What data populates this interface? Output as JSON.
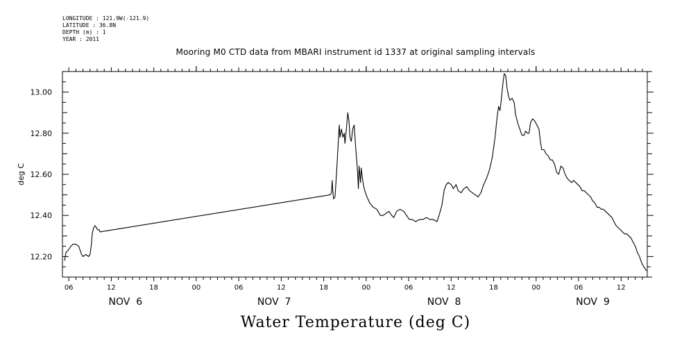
{
  "header": {
    "lines": [
      "LONGITUDE : 121.9W(-121.9)",
      "LATITUDE : 36.8N",
      "DEPTH (m) : 1",
      "YEAR : 2011"
    ]
  },
  "chart_data": {
    "type": "line",
    "title": "Mooring M0 CTD data from MBARI instrument id 1337 at original sampling intervals",
    "ylabel": "deg C",
    "xlabel": "Water Temperature (deg C)",
    "ylim": [
      12.1,
      13.1
    ],
    "y_ticks": [
      12.2,
      12.4,
      12.6,
      12.8,
      13.0
    ],
    "y_tick_labels": [
      "12.20",
      "12.40",
      "12.60",
      "12.80",
      "13.00"
    ],
    "x_unit": "hours since 2011-11-06 00:00",
    "xlim": [
      5.1,
      87.7
    ],
    "x_ticks": [
      6,
      12,
      18,
      24,
      30,
      36,
      42,
      48,
      54,
      60,
      66,
      72,
      78,
      84
    ],
    "x_tick_labels": [
      "06",
      "12",
      "18",
      "00",
      "06",
      "12",
      "18",
      "00",
      "06",
      "12",
      "18",
      "00",
      "06",
      "12"
    ],
    "day_labels": [
      {
        "hour": 14,
        "label": "NOV  6"
      },
      {
        "hour": 35,
        "label": "NOV  7"
      },
      {
        "hour": 59,
        "label": "NOV  8"
      },
      {
        "hour": 80,
        "label": "NOV  9"
      }
    ],
    "series": [
      {
        "values": [
          [
            5.4,
            12.18
          ],
          [
            5.6,
            12.22
          ],
          [
            5.9,
            12.23
          ],
          [
            6.3,
            12.25
          ],
          [
            6.6,
            12.26
          ],
          [
            7.0,
            12.26
          ],
          [
            7.4,
            12.25
          ],
          [
            7.6,
            12.23
          ],
          [
            7.8,
            12.21
          ],
          [
            8.0,
            12.2
          ],
          [
            8.4,
            12.21
          ],
          [
            8.8,
            12.2
          ],
          [
            9.0,
            12.21
          ],
          [
            9.2,
            12.26
          ],
          [
            9.3,
            12.31
          ],
          [
            9.5,
            12.34
          ],
          [
            9.7,
            12.35
          ],
          [
            9.9,
            12.34
          ],
          [
            10.1,
            12.33
          ],
          [
            10.3,
            12.33
          ],
          [
            10.4,
            12.32
          ],
          [
            42.9,
            12.5
          ],
          [
            43.1,
            12.51
          ],
          [
            43.2,
            12.57
          ],
          [
            43.3,
            12.51
          ],
          [
            43.4,
            12.48
          ],
          [
            43.6,
            12.49
          ],
          [
            43.8,
            12.6
          ],
          [
            44.0,
            12.72
          ],
          [
            44.2,
            12.84
          ],
          [
            44.3,
            12.78
          ],
          [
            44.5,
            12.82
          ],
          [
            44.7,
            12.78
          ],
          [
            44.9,
            12.8
          ],
          [
            45.0,
            12.75
          ],
          [
            45.2,
            12.82
          ],
          [
            45.4,
            12.9
          ],
          [
            45.6,
            12.85
          ],
          [
            45.7,
            12.78
          ],
          [
            45.9,
            12.76
          ],
          [
            46.1,
            12.82
          ],
          [
            46.3,
            12.84
          ],
          [
            46.5,
            12.74
          ],
          [
            46.7,
            12.65
          ],
          [
            46.8,
            12.6
          ],
          [
            46.9,
            12.53
          ],
          [
            47.0,
            12.64
          ],
          [
            47.2,
            12.56
          ],
          [
            47.3,
            12.63
          ],
          [
            47.4,
            12.6
          ],
          [
            47.6,
            12.55
          ],
          [
            47.8,
            12.52
          ],
          [
            48.0,
            12.5
          ],
          [
            48.5,
            12.46
          ],
          [
            49.0,
            12.44
          ],
          [
            49.5,
            12.43
          ],
          [
            50.0,
            12.4
          ],
          [
            50.4,
            12.4
          ],
          [
            50.8,
            12.41
          ],
          [
            51.2,
            12.42
          ],
          [
            51.6,
            12.4
          ],
          [
            51.9,
            12.39
          ],
          [
            52.3,
            12.42
          ],
          [
            52.8,
            12.43
          ],
          [
            53.3,
            12.42
          ],
          [
            53.7,
            12.4
          ],
          [
            54.1,
            12.38
          ],
          [
            54.5,
            12.38
          ],
          [
            55.0,
            12.37
          ],
          [
            55.5,
            12.38
          ],
          [
            56.0,
            12.38
          ],
          [
            56.5,
            12.39
          ],
          [
            57.0,
            12.38
          ],
          [
            57.5,
            12.38
          ],
          [
            58.0,
            12.37
          ],
          [
            58.3,
            12.4
          ],
          [
            58.7,
            12.45
          ],
          [
            59.0,
            12.52
          ],
          [
            59.3,
            12.55
          ],
          [
            59.6,
            12.56
          ],
          [
            60.0,
            12.55
          ],
          [
            60.3,
            12.53
          ],
          [
            60.7,
            12.55
          ],
          [
            61.0,
            12.52
          ],
          [
            61.4,
            12.51
          ],
          [
            61.8,
            12.53
          ],
          [
            62.2,
            12.54
          ],
          [
            62.6,
            12.52
          ],
          [
            63.0,
            12.51
          ],
          [
            63.4,
            12.5
          ],
          [
            63.8,
            12.49
          ],
          [
            64.2,
            12.51
          ],
          [
            64.6,
            12.55
          ],
          [
            65.0,
            12.58
          ],
          [
            65.4,
            12.62
          ],
          [
            65.8,
            12.68
          ],
          [
            66.2,
            12.78
          ],
          [
            66.5,
            12.88
          ],
          [
            66.7,
            12.93
          ],
          [
            66.9,
            12.91
          ],
          [
            67.1,
            12.97
          ],
          [
            67.3,
            13.04
          ],
          [
            67.5,
            13.09
          ],
          [
            67.7,
            13.08
          ],
          [
            67.9,
            13.02
          ],
          [
            68.1,
            12.98
          ],
          [
            68.3,
            12.96
          ],
          [
            68.6,
            12.97
          ],
          [
            68.9,
            12.95
          ],
          [
            69.1,
            12.89
          ],
          [
            69.4,
            12.85
          ],
          [
            69.7,
            12.82
          ],
          [
            70.0,
            12.79
          ],
          [
            70.3,
            12.79
          ],
          [
            70.5,
            12.81
          ],
          [
            70.8,
            12.8
          ],
          [
            71.0,
            12.8
          ],
          [
            71.2,
            12.85
          ],
          [
            71.5,
            12.87
          ],
          [
            71.8,
            12.86
          ],
          [
            72.1,
            12.84
          ],
          [
            72.4,
            12.82
          ],
          [
            72.6,
            12.76
          ],
          [
            72.8,
            12.72
          ],
          [
            73.1,
            12.72
          ],
          [
            73.4,
            12.7
          ],
          [
            73.7,
            12.69
          ],
          [
            74.0,
            12.67
          ],
          [
            74.3,
            12.67
          ],
          [
            74.6,
            12.65
          ],
          [
            74.9,
            12.61
          ],
          [
            75.2,
            12.6
          ],
          [
            75.5,
            12.64
          ],
          [
            75.8,
            12.63
          ],
          [
            76.1,
            12.6
          ],
          [
            76.4,
            12.58
          ],
          [
            76.7,
            12.57
          ],
          [
            77.0,
            12.56
          ],
          [
            77.3,
            12.57
          ],
          [
            77.6,
            12.56
          ],
          [
            77.9,
            12.55
          ],
          [
            78.2,
            12.54
          ],
          [
            78.5,
            12.52
          ],
          [
            78.8,
            12.52
          ],
          [
            79.1,
            12.51
          ],
          [
            79.4,
            12.5
          ],
          [
            79.7,
            12.49
          ],
          [
            80.0,
            12.47
          ],
          [
            80.3,
            12.46
          ],
          [
            80.6,
            12.44
          ],
          [
            80.9,
            12.44
          ],
          [
            81.2,
            12.43
          ],
          [
            81.5,
            12.43
          ],
          [
            81.8,
            12.42
          ],
          [
            82.1,
            12.41
          ],
          [
            82.4,
            12.4
          ],
          [
            82.7,
            12.39
          ],
          [
            83.0,
            12.37
          ],
          [
            83.3,
            12.35
          ],
          [
            83.6,
            12.34
          ],
          [
            83.9,
            12.33
          ],
          [
            84.2,
            12.32
          ],
          [
            84.5,
            12.31
          ],
          [
            84.8,
            12.31
          ],
          [
            85.1,
            12.3
          ],
          [
            85.4,
            12.29
          ],
          [
            85.7,
            12.27
          ],
          [
            86.0,
            12.25
          ],
          [
            86.3,
            12.22
          ],
          [
            86.6,
            12.2
          ],
          [
            86.9,
            12.17
          ],
          [
            87.2,
            12.15
          ],
          [
            87.6,
            12.13
          ]
        ]
      }
    ],
    "grid": false,
    "legend": "none"
  }
}
